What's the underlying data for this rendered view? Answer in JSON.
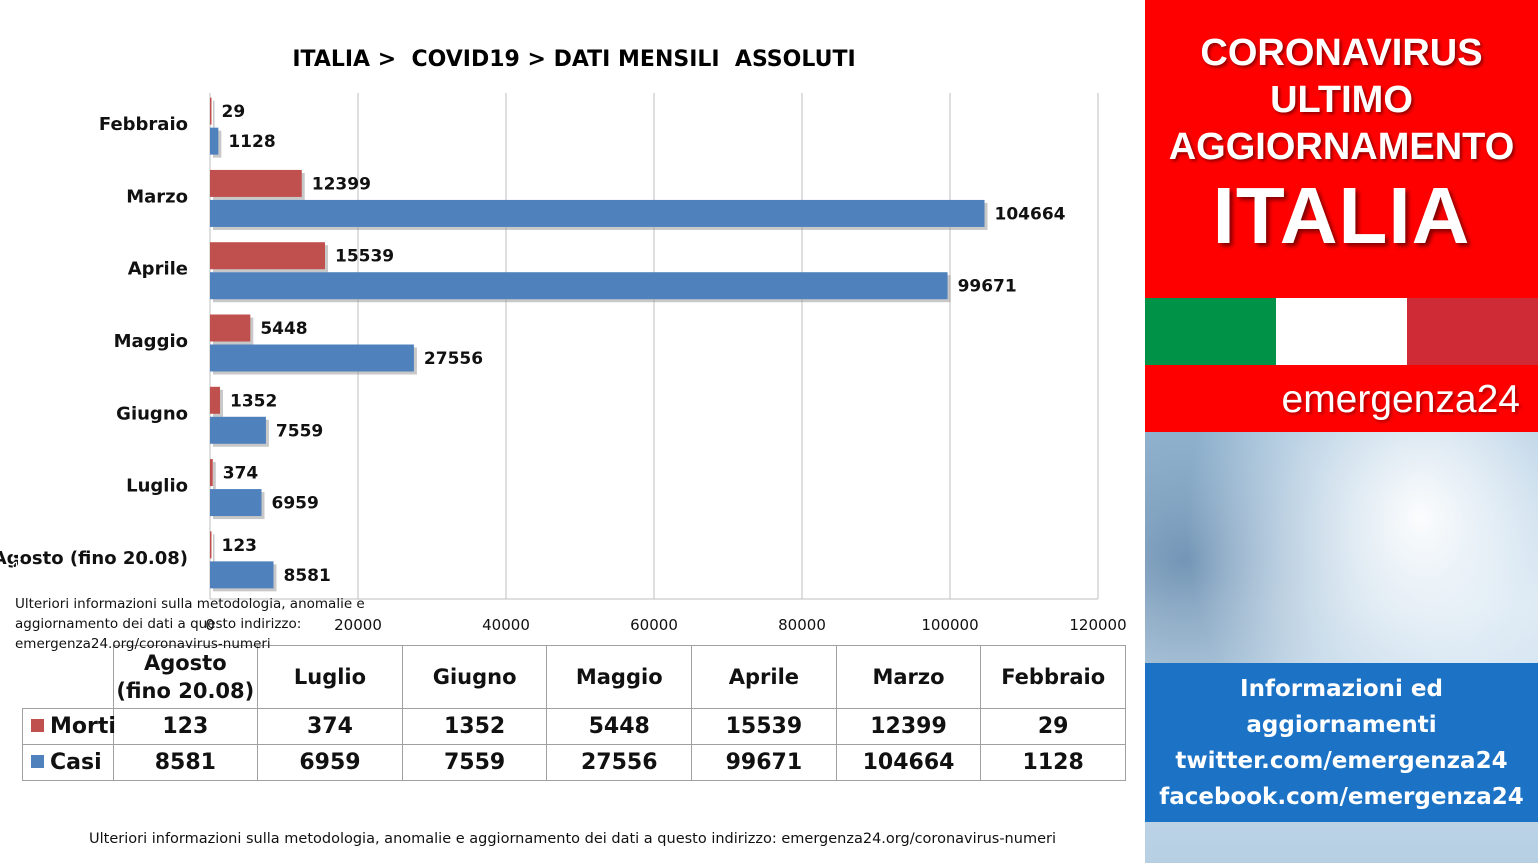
{
  "chart_data": {
    "type": "bar",
    "orientation": "horizontal",
    "title": "ITALIA >  COVID19 > DATI MENSILI  ASSOLUTI",
    "categories": [
      "Febbraio",
      "Marzo",
      "Aprile",
      "Maggio",
      "Giugno",
      "Luglio",
      "Agosto (fino 20.08)"
    ],
    "series": [
      {
        "name": "Morti",
        "color": "#c0504d",
        "values": [
          29,
          12399,
          15539,
          5448,
          1352,
          374,
          123
        ]
      },
      {
        "name": "Casi",
        "color": "#4f81bd",
        "values": [
          1128,
          104664,
          99671,
          27556,
          7559,
          6959,
          8581
        ]
      }
    ],
    "xlim": [
      0,
      120000
    ],
    "xticks": [
      0,
      20000,
      40000,
      60000,
      80000,
      100000,
      120000
    ],
    "grid": true,
    "data_labels": true,
    "legend": "data-table"
  },
  "table": {
    "columns": [
      "Agosto (fino 20.08)",
      "Luglio",
      "Giugno",
      "Maggio",
      "Aprile",
      "Marzo",
      "Febbraio"
    ],
    "rows": [
      {
        "label": "Morti",
        "color": "#c0504d",
        "values": [
          "123",
          "374",
          "1352",
          "5448",
          "15539",
          "12399",
          "29"
        ]
      },
      {
        "label": "Casi",
        "color": "#4f81bd",
        "values": [
          "8581",
          "6959",
          "7559",
          "27556",
          "99671",
          "104664",
          "1128"
        ]
      }
    ]
  },
  "footer_note": "Ulteriori informazioni sulla metodologia, anomalie e aggiornamento dei dati a questo indirizzo: emergenza24.org/coronavirus-numeri",
  "side_panel": {
    "header_line_1": "CORONAVIRUS",
    "header_line_2": "ULTIMO",
    "header_line_3": "AGGIORNAMENTO",
    "country": "ITALIA",
    "brand": "emergenza24",
    "handle": "@emergenza24",
    "info_note": "Ulteriori informazioni sulla metodologia, anomalie e aggiornamento dei dati a questo indirizzo: emergenza24.org/coronavirus-numeri",
    "contact_line_1": "Informazioni ed",
    "contact_line_2": "aggiornamenti",
    "contact_line_3": "twitter.com/emergenza24",
    "contact_line_4": "facebook.com/emergenza24",
    "colors": {
      "red": "#ff0000",
      "blue": "#1c73c6"
    },
    "flag_colors": [
      "#009246",
      "#ffffff",
      "#ce2b37"
    ]
  }
}
